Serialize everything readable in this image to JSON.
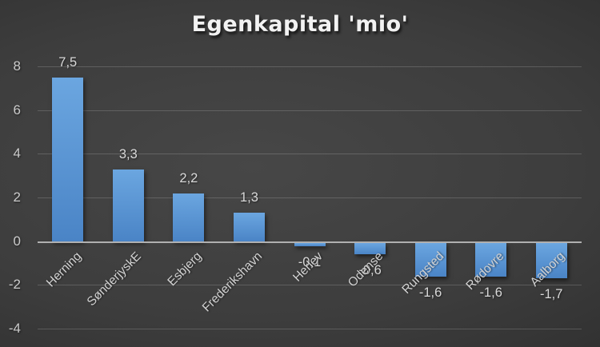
{
  "chart_data": {
    "type": "bar",
    "title": "Egenkapital 'mio'",
    "categories": [
      "Herning",
      "SønderjyskE",
      "Esbjerg",
      "Frederikshavn",
      "Herlev",
      "Odense",
      "Rungsted",
      "Rødovre",
      "Aalborg"
    ],
    "values": [
      7.5,
      3.3,
      2.2,
      1.3,
      -0.1,
      -0.6,
      -1.6,
      -1.6,
      -1.7
    ],
    "value_labels": [
      "7,5",
      "3,3",
      "2,2",
      "1,3",
      "-0,1",
      "-0,6",
      "-1,6",
      "-1,6",
      "-1,7"
    ],
    "y_ticks": [
      8,
      6,
      4,
      2,
      0,
      -2,
      -4
    ],
    "y_tick_labels": [
      "8",
      "6",
      "4",
      "2",
      "0",
      "-2",
      "-4"
    ],
    "ylim": [
      -4,
      8
    ],
    "grid": true,
    "legend": false,
    "xlabel": "",
    "ylabel": "",
    "colors": {
      "bar": "#5b9bd5",
      "bar_gradient_top": "#6ba6e0",
      "bar_gradient_bottom": "#4a84c6",
      "axis_line": "#b0b0b0",
      "gridline": "rgba(255,255,255,0.17)",
      "label_text": "#d2d2d2",
      "title_text": "#f2f2f2",
      "background_center": "#474747",
      "background_edge": "#232323"
    }
  }
}
